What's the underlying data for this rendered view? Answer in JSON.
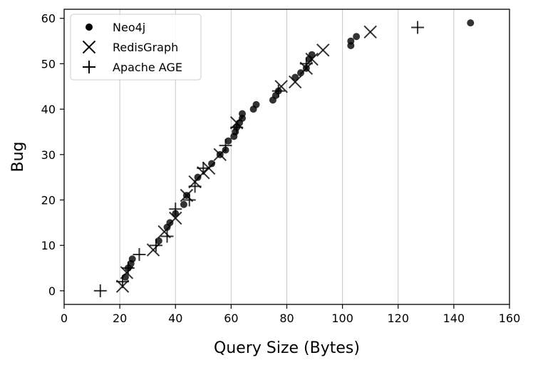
{
  "chart_data": {
    "type": "scatter",
    "xlabel": "Query Size (Bytes)",
    "ylabel": "Bug",
    "xlim": [
      0,
      160
    ],
    "ylim": [
      -3,
      62
    ],
    "xticks": [
      0,
      20,
      40,
      60,
      80,
      100,
      120,
      140,
      160
    ],
    "yticks": [
      0,
      10,
      20,
      30,
      40,
      50,
      60
    ],
    "grid": "vertical",
    "legend": "top-left",
    "series": [
      {
        "name": "Neo4j",
        "marker": "circle",
        "color": "#000000",
        "points": [
          [
            22,
            3
          ],
          [
            23,
            5
          ],
          [
            24,
            6
          ],
          [
            24.5,
            7
          ],
          [
            34,
            11
          ],
          [
            37,
            14
          ],
          [
            38,
            15
          ],
          [
            40,
            17
          ],
          [
            43,
            19
          ],
          [
            44,
            21
          ],
          [
            48,
            25
          ],
          [
            53,
            28
          ],
          [
            56,
            30
          ],
          [
            58,
            31
          ],
          [
            59,
            33
          ],
          [
            61,
            34
          ],
          [
            61.5,
            35
          ],
          [
            62,
            36
          ],
          [
            63,
            37
          ],
          [
            64,
            38
          ],
          [
            64,
            39
          ],
          [
            68,
            40
          ],
          [
            69,
            41
          ],
          [
            75,
            42
          ],
          [
            76,
            43
          ],
          [
            77,
            44
          ],
          [
            83,
            47
          ],
          [
            85,
            48
          ],
          [
            87,
            49
          ],
          [
            88,
            51
          ],
          [
            89,
            52
          ],
          [
            103,
            54
          ],
          [
            103,
            55
          ],
          [
            105,
            56
          ],
          [
            146,
            59
          ]
        ]
      },
      {
        "name": "RedisGraph",
        "marker": "x",
        "color": "#000000",
        "points": [
          [
            21,
            1
          ],
          [
            22.5,
            4
          ],
          [
            32,
            9
          ],
          [
            36,
            13
          ],
          [
            40,
            16
          ],
          [
            44,
            21
          ],
          [
            47,
            24
          ],
          [
            50,
            26
          ],
          [
            52,
            27
          ],
          [
            56,
            30
          ],
          [
            62,
            37
          ],
          [
            78,
            45
          ],
          [
            83,
            46
          ],
          [
            87,
            49
          ],
          [
            89,
            51
          ],
          [
            93,
            53
          ],
          [
            110,
            57
          ]
        ]
      },
      {
        "name": "Apache AGE",
        "marker": "plus",
        "color": "#000000",
        "points": [
          [
            13,
            0
          ],
          [
            21,
            2
          ],
          [
            23,
            5
          ],
          [
            27,
            8
          ],
          [
            33,
            10
          ],
          [
            37,
            12
          ],
          [
            40,
            18
          ],
          [
            45,
            20
          ],
          [
            47,
            23
          ],
          [
            50,
            27
          ],
          [
            58,
            32
          ],
          [
            62,
            36
          ],
          [
            77,
            44
          ],
          [
            87,
            50
          ],
          [
            127,
            58
          ]
        ]
      }
    ]
  }
}
